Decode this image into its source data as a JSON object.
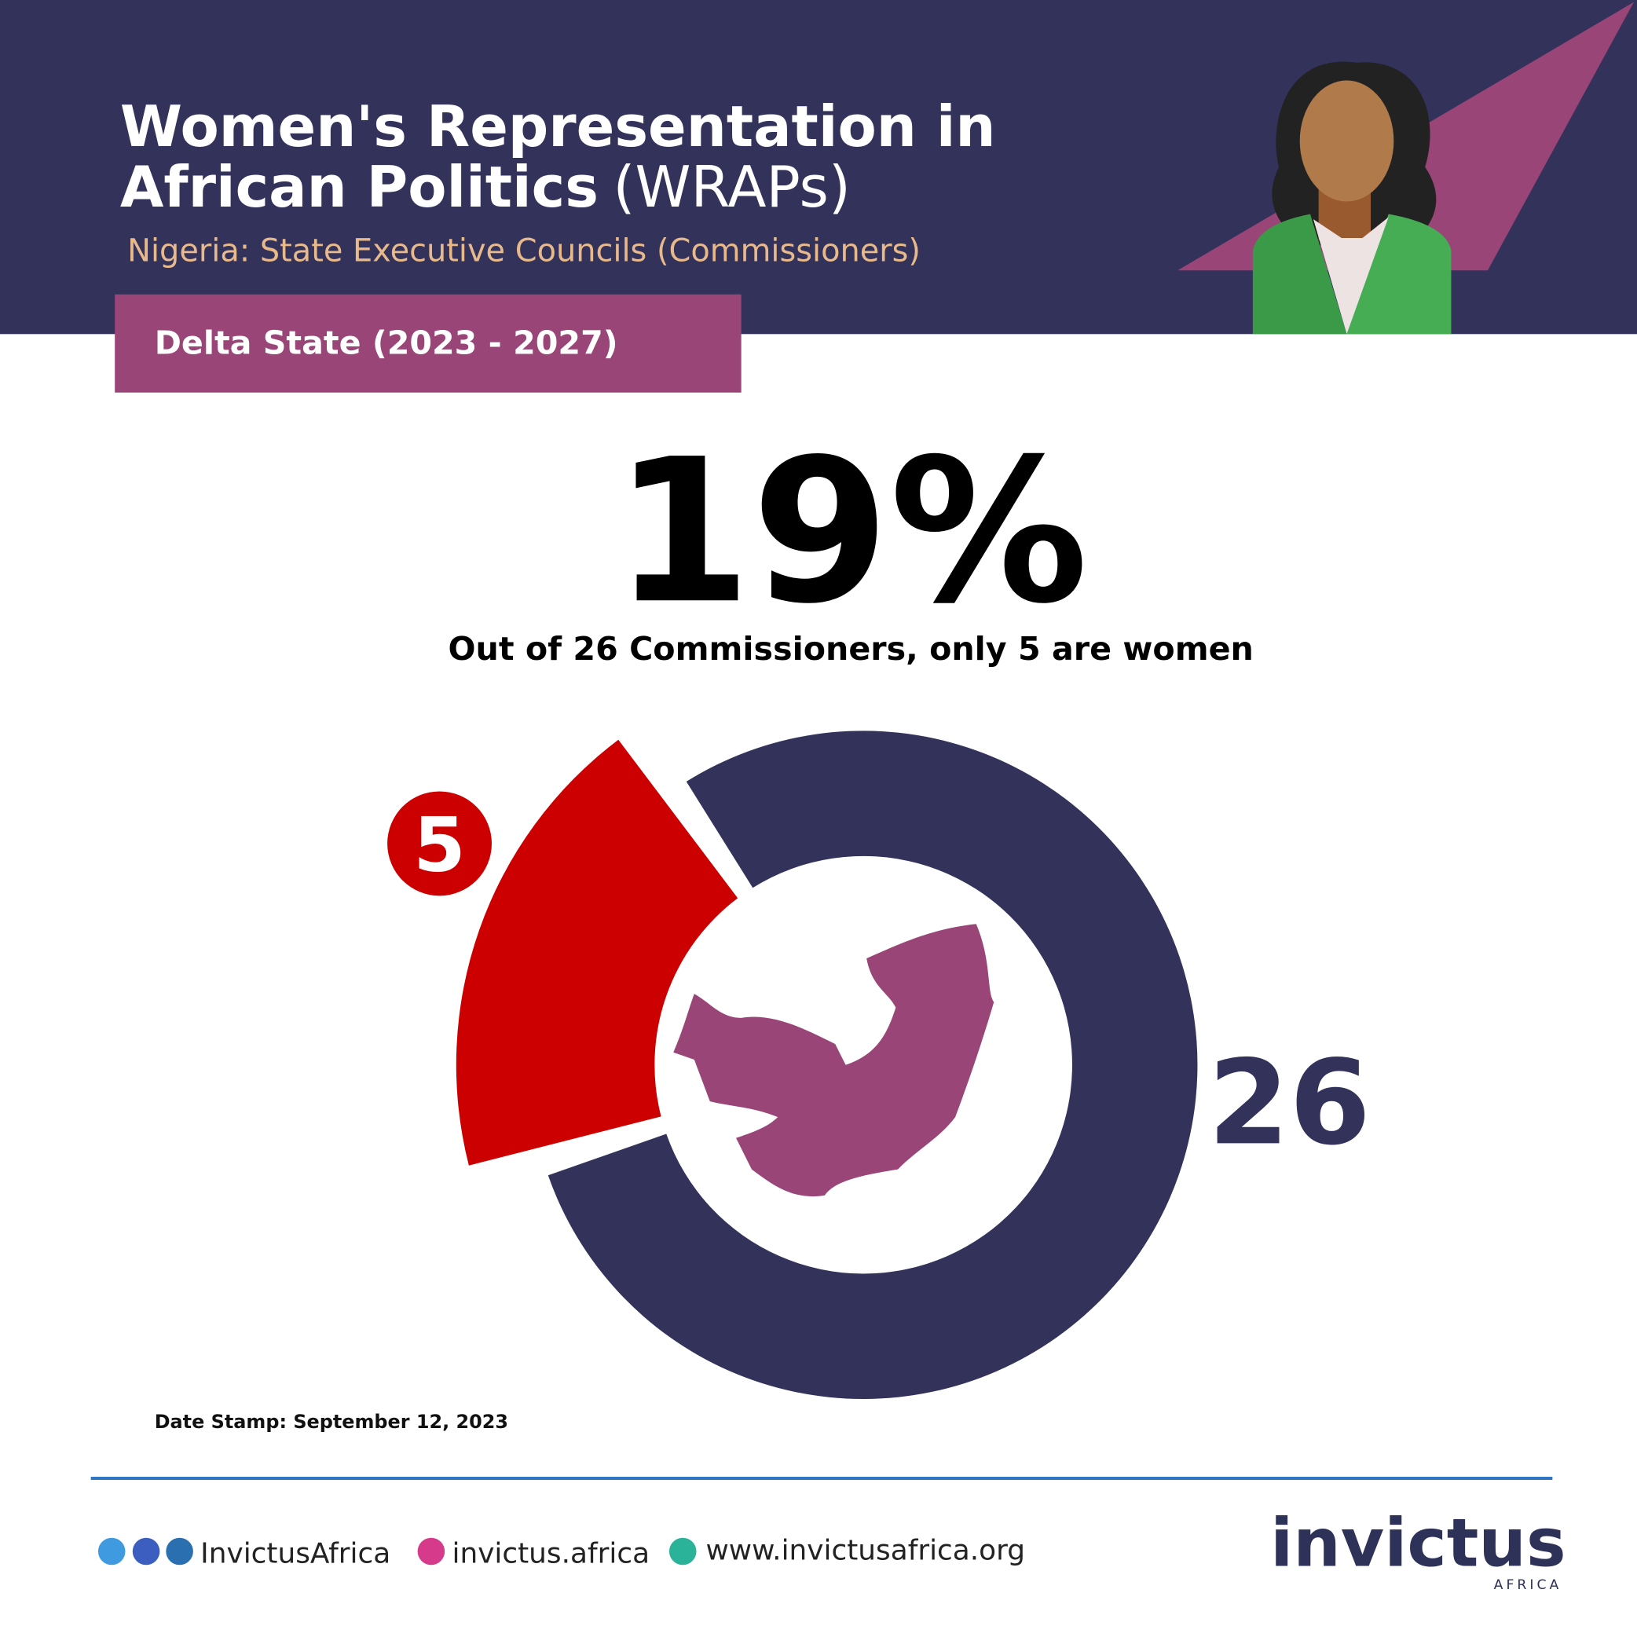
{
  "header": {
    "title_line1": "Women's Representation in",
    "title_line2": "African Politics",
    "title_light": "(WRAPs)",
    "subtitle": "Nigeria: State Executive Councils (Commissioners)",
    "badge": "Delta State (2023 - 2027)"
  },
  "chart_data": {
    "type": "donut",
    "headline": "19%",
    "caption": "Out of 26 Commissioners, only 5 are women",
    "values": [
      5
    ],
    "total": 26,
    "colors": {
      "part": "#cc0000",
      "total": "#33325a"
    }
  },
  "date_stamp": "Date Stamp: September 12, 2023",
  "footer": {
    "social": "InvictusAfrica",
    "instagram": "invictus.africa",
    "website": "www.invictusafrica.org",
    "logo": "invictus",
    "logo_sub": "AFRICA"
  }
}
